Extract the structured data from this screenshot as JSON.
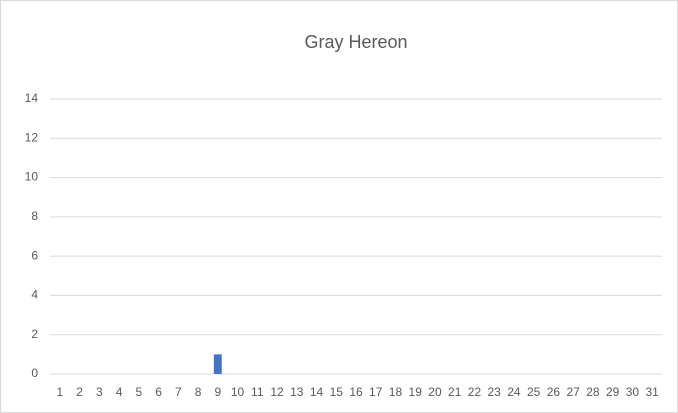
{
  "chart_data": {
    "type": "bar",
    "title": "Gray Hereon",
    "categories": [
      "1",
      "2",
      "3",
      "4",
      "5",
      "6",
      "7",
      "8",
      "9",
      "10",
      "11",
      "12",
      "13",
      "14",
      "15",
      "16",
      "17",
      "18",
      "19",
      "20",
      "21",
      "22",
      "23",
      "24",
      "25",
      "26",
      "27",
      "28",
      "29",
      "30",
      "31"
    ],
    "values": [
      0,
      0,
      0,
      0,
      0,
      0,
      0,
      0,
      1,
      0,
      0,
      0,
      0,
      0,
      0,
      0,
      0,
      0,
      0,
      0,
      0,
      0,
      0,
      0,
      0,
      0,
      0,
      0,
      0,
      0,
      0
    ],
    "color": "#4472c4",
    "ylim": [
      0,
      14
    ],
    "yticks": [
      0,
      2,
      4,
      6,
      8,
      10,
      12,
      14
    ],
    "grid": true
  }
}
